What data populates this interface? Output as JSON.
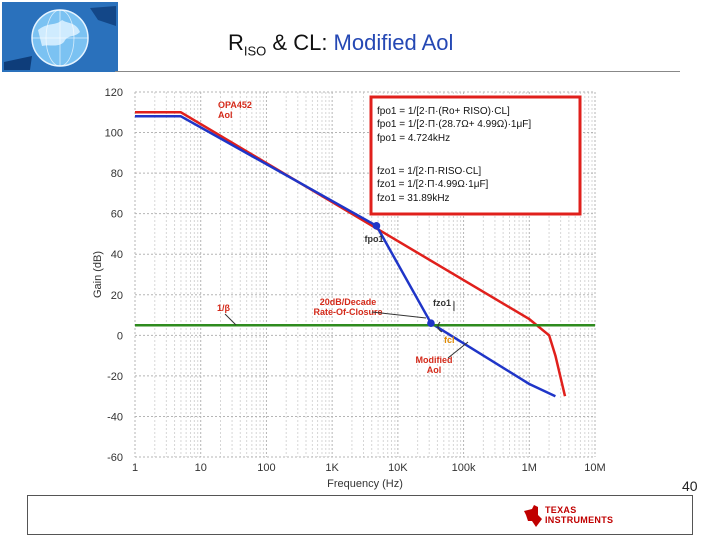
{
  "title": {
    "main": "R",
    "sub": "ISO",
    "rest": " & CL: ",
    "emph": "Modified Aol"
  },
  "page_number": "40",
  "footer": {
    "brand_line1": "TEXAS",
    "brand_line2": "INSTRUMENTS"
  },
  "colors": {
    "aol": "#e0201c",
    "modified": "#1f35c8",
    "beta": "#2e8b1e",
    "box": "#e0201c",
    "annotation": "#d42a1a"
  },
  "chart_data": {
    "type": "line",
    "xscale": "log",
    "xlabel": "Frequency (Hz)",
    "ylabel": "Gain (dB)",
    "xlim": [
      1,
      10000000
    ],
    "ylim": [
      -60,
      120
    ],
    "xticks": [
      1,
      10,
      100,
      1000,
      10000,
      100000,
      1000000,
      10000000
    ],
    "xtick_labels": [
      "1",
      "10",
      "100",
      "1K",
      "10K",
      "100k",
      "1M",
      "10M"
    ],
    "yticks": [
      120,
      100,
      80,
      60,
      40,
      20,
      0,
      -20,
      -40,
      -60
    ],
    "ytick_labels": [
      "120",
      "100",
      "80",
      "60",
      "40",
      "20",
      "0",
      "-20",
      "-40",
      "-60"
    ],
    "grid": true,
    "series": [
      {
        "name": "OPA452 Aol",
        "color": "#e0201c",
        "x": [
          1,
          5,
          1000000,
          2000000,
          2500000,
          3500000
        ],
        "y": [
          110,
          110,
          8,
          0,
          -10,
          -30
        ]
      },
      {
        "name": "Modified Aol",
        "color": "#1f35c8",
        "x": [
          1,
          5,
          4724,
          31890,
          1000000,
          2500000
        ],
        "y": [
          108,
          108,
          54,
          6,
          -24,
          -30
        ]
      },
      {
        "name": "1/β",
        "color": "#2e8b1e",
        "x": [
          1,
          10000000
        ],
        "y": [
          5,
          5
        ]
      }
    ],
    "points": [
      {
        "label": "fpo1",
        "x": 4724,
        "y": 54
      },
      {
        "label": "fzo1",
        "x": 31890,
        "y": 6
      }
    ],
    "annotations": {
      "opa_label": [
        "OPA452",
        "Aol"
      ],
      "fpo1_label": "fpo1",
      "fzo1_label": "fzo1",
      "rate_label": [
        "20dB/Decade",
        "Rate-Of-Closure"
      ],
      "beta_label": "1/β",
      "fcl_label": "fcl",
      "modified_label": [
        "Modified",
        "Aol"
      ]
    },
    "formulas": [
      "fpo1 = 1/[2·Π·(Ro+ RISO)·CL]",
      "fpo1 = 1/[2·Π·(28.7Ω+ 4.99Ω)·1μF]",
      "fpo1 = 4.724kHz",
      "fzo1 = 1/[2·Π·RISO·CL]",
      "fzo1 = 1/[2·Π·4.99Ω·1μF]",
      "fzo1 = 31.89kHz"
    ]
  }
}
